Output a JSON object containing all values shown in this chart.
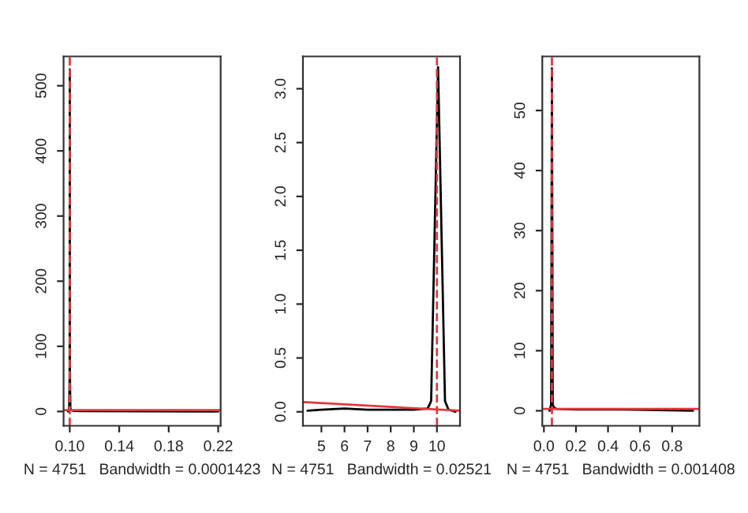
{
  "chart_data": [
    {
      "type": "line",
      "xlabel": "N = 4751   Bandwidth = 0.0001423",
      "xlim": [
        0.095,
        0.222
      ],
      "xticks": [
        {
          "value": 0.1,
          "label": "0.10"
        },
        0.14,
        0.18,
        0.22
      ],
      "ylim": [
        -22,
        545
      ],
      "yticks": [
        0,
        100,
        200,
        300,
        400,
        500
      ],
      "grid": false,
      "series": [
        {
          "color": "#000000",
          "x": [
            0.0985,
            0.0995,
            0.0999,
            0.1,
            0.1001,
            0.1005,
            0.101,
            0.103,
            0.11,
            0.22
          ],
          "values": [
            0,
            2,
            60,
            525,
            60,
            5,
            2,
            1,
            0.5,
            0
          ]
        },
        {
          "color": "#e0393e",
          "x": [
            0.095,
            0.222
          ],
          "values": [
            2,
            2
          ]
        }
      ],
      "ref_lines": [
        {
          "axis": "x",
          "value": 0.1,
          "color": "#e0393e",
          "line_style": "dashed"
        }
      ]
    },
    {
      "type": "line",
      "xlabel": "N = 4751   Bandwidth = 0.02521",
      "xlim": [
        4.2,
        11
      ],
      "xticks": [
        5,
        6,
        7,
        8,
        9,
        10
      ],
      "ylim": [
        -0.13,
        3.3
      ],
      "yticks": [
        {
          "value": 0,
          "label": "0.0"
        },
        0.5,
        {
          "value": 1,
          "label": "1.0"
        },
        1.5,
        {
          "value": 2,
          "label": "2.0"
        },
        2.5,
        {
          "value": 3,
          "label": "3.0"
        }
      ],
      "grid": false,
      "series": [
        {
          "color": "#000000",
          "x": [
            4.4,
            5,
            6,
            7,
            8,
            9,
            9.6,
            9.75,
            10.05,
            10.35,
            10.5,
            10.8
          ],
          "values": [
            0.01,
            0.02,
            0.03,
            0.02,
            0.02,
            0.02,
            0.03,
            0.1,
            3.2,
            0.1,
            0.02,
            0
          ]
        },
        {
          "color": "#e0393e",
          "x": [
            4.2,
            11
          ],
          "values": [
            0.09,
            0.01
          ]
        }
      ],
      "ref_lines": [
        {
          "axis": "x",
          "value": 10.0,
          "color": "#e0393e",
          "line_style": "dashed"
        }
      ]
    },
    {
      "type": "line",
      "xlabel": "N = 4751   Bandwidth = 0.001408",
      "xlim": [
        -0.01,
        0.97
      ],
      "xticks": [
        {
          "value": 0,
          "label": "0.0"
        },
        0.2,
        0.4,
        0.6,
        0.8
      ],
      "ylim": [
        -2.5,
        59
      ],
      "yticks": [
        0,
        10,
        20,
        30,
        40,
        50
      ],
      "grid": false,
      "series": [
        {
          "color": "#000000",
          "x": [
            0.035,
            0.045,
            0.05,
            0.055,
            0.065,
            0.08,
            0.2,
            0.5,
            0.93
          ],
          "values": [
            0,
            1,
            57,
            1,
            0.5,
            0.3,
            0.2,
            0.2,
            0
          ]
        },
        {
          "color": "#e0393e",
          "x": [
            -0.01,
            0.97
          ],
          "values": [
            0.3,
            0.3
          ]
        }
      ],
      "ref_lines": [
        {
          "axis": "x",
          "value": 0.05,
          "color": "#e0393e",
          "line_style": "dashed"
        }
      ]
    }
  ]
}
